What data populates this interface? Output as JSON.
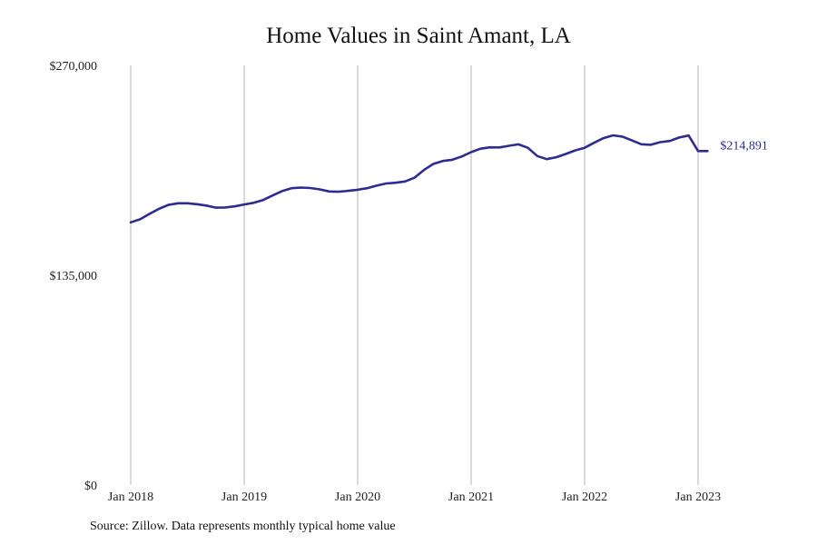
{
  "chart_data": {
    "type": "line",
    "title": "Home Values in Saint Amant, LA",
    "xlabel": "",
    "ylabel": "",
    "ylim": [
      0,
      270000
    ],
    "y_ticks": [
      0,
      135000,
      270000
    ],
    "y_tick_labels": [
      "$0",
      "$135,000",
      "$270,000"
    ],
    "x_ticks": [
      "2018-01",
      "2019-01",
      "2020-01",
      "2021-01",
      "2022-01",
      "2023-01"
    ],
    "x_tick_labels": [
      "Jan 2018",
      "Jan 2019",
      "Jan 2020",
      "Jan 2021",
      "Jan 2022",
      "Jan 2023"
    ],
    "grid": "vertical",
    "line_color": "#2e2d8f",
    "end_label": "$214,891",
    "series": [
      {
        "x": [
          "2018-01",
          "2018-02",
          "2018-03",
          "2018-04",
          "2018-05",
          "2018-06",
          "2018-07",
          "2018-08",
          "2018-09",
          "2018-10",
          "2018-11",
          "2018-12",
          "2019-01",
          "2019-02",
          "2019-03",
          "2019-04",
          "2019-05",
          "2019-06",
          "2019-07",
          "2019-08",
          "2019-09",
          "2019-10",
          "2019-11",
          "2019-12",
          "2020-01",
          "2020-02",
          "2020-03",
          "2020-04",
          "2020-05",
          "2020-06",
          "2020-07",
          "2020-08",
          "2020-09",
          "2020-10",
          "2020-11",
          "2020-12",
          "2021-01",
          "2021-02",
          "2021-03",
          "2021-04",
          "2021-05",
          "2021-06",
          "2021-07",
          "2021-08",
          "2021-09",
          "2021-10",
          "2021-11",
          "2021-12",
          "2022-01",
          "2022-02",
          "2022-03",
          "2022-04",
          "2022-05",
          "2022-06",
          "2022-07",
          "2022-08",
          "2022-09",
          "2022-10",
          "2022-11",
          "2022-12",
          "2023-01",
          "2023-02"
        ],
        "values": [
          169000,
          171000,
          174500,
          177800,
          180300,
          181300,
          181300,
          180700,
          179800,
          178500,
          178600,
          179300,
          180500,
          181600,
          183400,
          186300,
          189100,
          191000,
          191400,
          191100,
          190200,
          188900,
          188700,
          189300,
          190000,
          191000,
          192600,
          194000,
          194500,
          195300,
          197700,
          202700,
          206600,
          208500,
          209300,
          211400,
          214200,
          216400,
          217300,
          217200,
          218300,
          219200,
          217000,
          211700,
          209700,
          210900,
          213000,
          215300,
          217000,
          220200,
          223200,
          225000,
          224200,
          221700,
          219300,
          218900,
          220600,
          221400,
          223600,
          224900,
          214891,
          214891
        ]
      }
    ]
  },
  "source": "Source: Zillow. Data represents monthly typical home value"
}
